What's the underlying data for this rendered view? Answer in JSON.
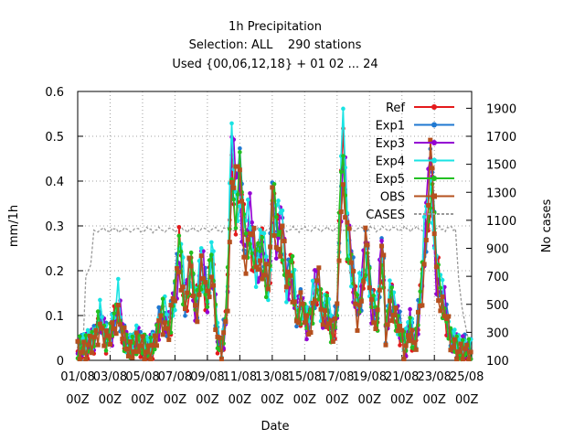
{
  "chart_data": {
    "type": "line",
    "title": [
      "1h Precipitation",
      "Selection: ALL    290 stations",
      "Used {00,06,12,18} + 01 02 ... 24"
    ],
    "xlabel": "Date",
    "ylabel": "mm/1h",
    "y2label": "No cases",
    "xlim": [
      0,
      24.3
    ],
    "ylim": [
      0,
      0.6
    ],
    "y2lim": [
      100,
      2020
    ],
    "x_ticks": [
      {
        "x": 0,
        "line1": "01/08",
        "line2": "00Z"
      },
      {
        "x": 2,
        "line1": "03/08",
        "line2": "00Z"
      },
      {
        "x": 4,
        "line1": "05/08",
        "line2": "00Z"
      },
      {
        "x": 6,
        "line1": "07/08",
        "line2": "00Z"
      },
      {
        "x": 8,
        "line1": "09/08",
        "line2": "00Z"
      },
      {
        "x": 10,
        "line1": "11/08",
        "line2": "00Z"
      },
      {
        "x": 12,
        "line1": "13/08",
        "line2": "00Z"
      },
      {
        "x": 14,
        "line1": "15/08",
        "line2": "00Z"
      },
      {
        "x": 16,
        "line1": "17/08",
        "line2": "00Z"
      },
      {
        "x": 18,
        "line1": "19/08",
        "line2": "00Z"
      },
      {
        "x": 20,
        "line1": "21/08",
        "line2": "00Z"
      },
      {
        "x": 22,
        "line1": "23/08",
        "line2": "00Z"
      },
      {
        "x": 24,
        "line1": "25/08",
        "line2": "00Z"
      }
    ],
    "y_ticks": [
      "0",
      "0.1",
      "0.2",
      "0.3",
      "0.4",
      "0.5",
      "0.6"
    ],
    "y2_ticks": [
      "100",
      "300",
      "500",
      "700",
      "900",
      "1100",
      "1300",
      "1500",
      "1700",
      "1900"
    ],
    "grid": true,
    "legend_position": "top-right",
    "base_profile": [
      [
        0.0,
        0.02
      ],
      [
        0.5,
        0.03
      ],
      [
        1.0,
        0.04
      ],
      [
        1.4,
        0.09
      ],
      [
        1.8,
        0.04
      ],
      [
        2.1,
        0.06
      ],
      [
        2.5,
        0.12
      ],
      [
        2.8,
        0.05
      ],
      [
        3.2,
        0.02
      ],
      [
        3.6,
        0.04
      ],
      [
        4.0,
        0.03
      ],
      [
        4.4,
        0.02
      ],
      [
        4.8,
        0.04
      ],
      [
        5.2,
        0.1
      ],
      [
        5.6,
        0.07
      ],
      [
        6.0,
        0.14
      ],
      [
        6.3,
        0.25
      ],
      [
        6.6,
        0.12
      ],
      [
        7.0,
        0.2
      ],
      [
        7.3,
        0.1
      ],
      [
        7.6,
        0.22
      ],
      [
        8.0,
        0.12
      ],
      [
        8.3,
        0.23
      ],
      [
        8.6,
        0.05
      ],
      [
        8.9,
        0.02
      ],
      [
        9.2,
        0.1
      ],
      [
        9.5,
        0.45
      ],
      [
        9.8,
        0.35
      ],
      [
        10.0,
        0.4
      ],
      [
        10.3,
        0.25
      ],
      [
        10.6,
        0.3
      ],
      [
        11.0,
        0.2
      ],
      [
        11.4,
        0.25
      ],
      [
        11.8,
        0.15
      ],
      [
        12.0,
        0.33
      ],
      [
        12.3,
        0.28
      ],
      [
        12.6,
        0.3
      ],
      [
        12.9,
        0.15
      ],
      [
        13.2,
        0.2
      ],
      [
        13.5,
        0.1
      ],
      [
        13.8,
        0.12
      ],
      [
        14.2,
        0.07
      ],
      [
        14.5,
        0.12
      ],
      [
        14.8,
        0.18
      ],
      [
        15.1,
        0.09
      ],
      [
        15.4,
        0.12
      ],
      [
        15.7,
        0.05
      ],
      [
        16.0,
        0.1
      ],
      [
        16.2,
        0.35
      ],
      [
        16.4,
        0.48
      ],
      [
        16.6,
        0.3
      ],
      [
        16.9,
        0.2
      ],
      [
        17.2,
        0.1
      ],
      [
        17.5,
        0.15
      ],
      [
        17.8,
        0.26
      ],
      [
        18.1,
        0.12
      ],
      [
        18.5,
        0.1
      ],
      [
        18.8,
        0.26
      ],
      [
        19.0,
        0.05
      ],
      [
        19.3,
        0.15
      ],
      [
        19.6,
        0.1
      ],
      [
        19.9,
        0.06
      ],
      [
        20.2,
        0.02
      ],
      [
        20.5,
        0.08
      ],
      [
        20.8,
        0.02
      ],
      [
        21.2,
        0.15
      ],
      [
        21.5,
        0.3
      ],
      [
        21.8,
        0.43
      ],
      [
        22.1,
        0.2
      ],
      [
        22.4,
        0.15
      ],
      [
        22.7,
        0.1
      ],
      [
        23.0,
        0.04
      ],
      [
        23.3,
        0.03
      ],
      [
        23.6,
        0.02
      ],
      [
        24.0,
        0.02
      ],
      [
        24.3,
        0.01
      ]
    ],
    "series": [
      {
        "name": "Ref",
        "color": "#e41a1c",
        "marker": "circle",
        "offset": 0.0
      },
      {
        "name": "Exp1",
        "color": "#1f78d1",
        "marker": "circle",
        "offset": 0.012
      },
      {
        "name": "Exp3",
        "color": "#9400d3",
        "marker": "circle",
        "offset": 0.008
      },
      {
        "name": "Exp4",
        "color": "#19e3e3",
        "marker": "circle",
        "offset": 0.018
      },
      {
        "name": "Exp5",
        "color": "#22c022",
        "marker": "circle",
        "offset": 0.004
      },
      {
        "name": "OBS",
        "color": "#b5501e",
        "marker": "square",
        "offset": -0.004
      }
    ],
    "cases_series": {
      "name": "CASES",
      "color": "#999999",
      "axis": "right",
      "points": [
        [
          0.0,
          120
        ],
        [
          0.3,
          120
        ],
        [
          0.5,
          700
        ],
        [
          0.8,
          780
        ],
        [
          1.0,
          1030
        ],
        [
          23.3,
          1040
        ],
        [
          23.5,
          680
        ],
        [
          23.7,
          480
        ],
        [
          24.0,
          300
        ],
        [
          24.3,
          150
        ]
      ]
    }
  }
}
